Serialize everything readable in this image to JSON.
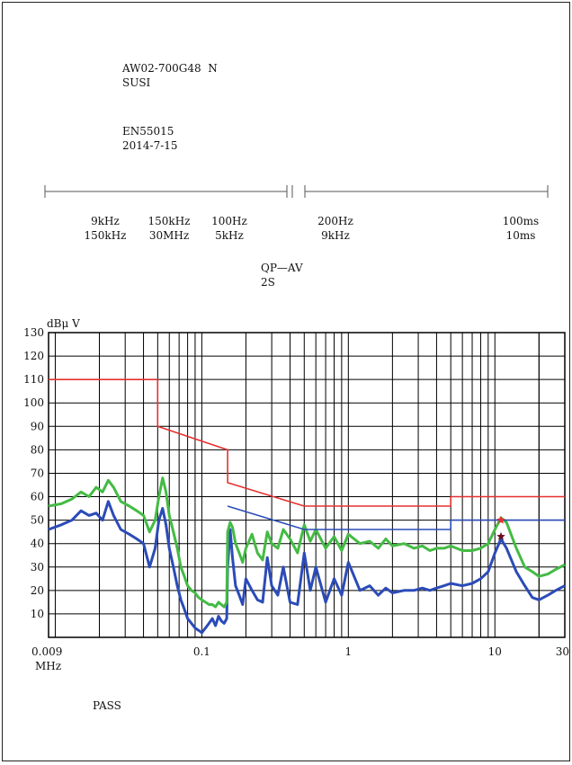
{
  "header": {
    "model": "AW02-700G48  N",
    "name": "SUSI",
    "standard": "EN55015",
    "date": "2014-7-15"
  },
  "bands": {
    "band_a_start": "9kHz",
    "band_a_end": "150kHz",
    "band_b_start": "150kHz",
    "band_b_end": "30MHz",
    "rbw_a": "100Hz",
    "rbw_b": "5kHz",
    "step_a": "200Hz",
    "step_b": "9kHz",
    "time_a": "100ms",
    "time_b": "10ms",
    "detector": "QP—AV",
    "sweep": "2S"
  },
  "result": "PASS",
  "colors": {
    "limit_qp": "#e53030",
    "limit_av": "#2b4bb8",
    "trace_qp": "#44bb44",
    "trace_av": "#2b4bb8",
    "marker_qp": "#e53030",
    "marker_av": "#6a1020"
  },
  "chart_data": {
    "type": "line",
    "x_scale": "log",
    "xlim": [
      0.009,
      30
    ],
    "ylim": [
      0,
      130
    ],
    "ylabel": "dBμ V",
    "xlabel_unit": "MHz",
    "grid": true,
    "y_ticks": [
      "10",
      "20",
      "30",
      "40",
      "50",
      "60",
      "70",
      "80",
      "90",
      "100",
      "110",
      "120",
      "130"
    ],
    "x_tick_labels": [
      {
        "x": 0.009,
        "label": "0.009"
      },
      {
        "x": 0.1,
        "label": "0.1"
      },
      {
        "x": 1,
        "label": "1"
      },
      {
        "x": 10,
        "label": "10"
      },
      {
        "x": 30,
        "label": "30"
      }
    ],
    "series": [
      {
        "key": "limit_qp",
        "style": "limit",
        "x": [
          0.009,
          0.05,
          0.05,
          0.15,
          0.15,
          0.5,
          5,
          5,
          30
        ],
        "y": [
          110,
          110,
          90,
          80,
          66,
          56,
          56,
          60,
          60
        ]
      },
      {
        "key": "limit_av",
        "style": "limit",
        "x": [
          0.15,
          0.5,
          5,
          5,
          30
        ],
        "y": [
          56,
          46,
          46,
          50,
          50
        ]
      },
      {
        "key": "trace_qp",
        "style": "trace",
        "x": [
          0.009,
          0.011,
          0.013,
          0.015,
          0.017,
          0.019,
          0.021,
          0.023,
          0.025,
          0.028,
          0.032,
          0.036,
          0.04,
          0.044,
          0.048,
          0.051,
          0.054,
          0.057,
          0.06,
          0.064,
          0.068,
          0.072,
          0.076,
          0.08,
          0.085,
          0.09,
          0.095,
          0.1,
          0.106,
          0.112,
          0.118,
          0.124,
          0.13,
          0.136,
          0.142,
          0.148,
          0.15,
          0.156,
          0.162,
          0.17,
          0.18,
          0.19,
          0.2,
          0.22,
          0.24,
          0.26,
          0.28,
          0.3,
          0.33,
          0.36,
          0.4,
          0.45,
          0.5,
          0.55,
          0.6,
          0.7,
          0.8,
          0.9,
          1,
          1.2,
          1.4,
          1.6,
          1.8,
          2,
          2.4,
          2.8,
          3.2,
          3.6,
          4,
          4.5,
          5,
          6,
          7,
          8,
          9,
          10,
          11,
          12,
          14,
          16,
          18,
          20,
          23,
          26,
          30
        ],
        "y": [
          56,
          57,
          59,
          62,
          60,
          64,
          62,
          67,
          64,
          58,
          56,
          54,
          52,
          45,
          50,
          60,
          68,
          62,
          52,
          45,
          38,
          30,
          26,
          22,
          20,
          19,
          17,
          16,
          15,
          14,
          14,
          13,
          15,
          14,
          13,
          15,
          45,
          49,
          47,
          40,
          36,
          32,
          38,
          44,
          36,
          33,
          45,
          40,
          38,
          46,
          42,
          36,
          48,
          41,
          46,
          38,
          43,
          37,
          44,
          40,
          41,
          38,
          42,
          39,
          40,
          38,
          39,
          37,
          38,
          38,
          39,
          37,
          37,
          38,
          40,
          46,
          51,
          49,
          38,
          30,
          28,
          26,
          27,
          29,
          31
        ]
      },
      {
        "key": "trace_av",
        "style": "trace",
        "x": [
          0.009,
          0.011,
          0.013,
          0.015,
          0.017,
          0.019,
          0.021,
          0.023,
          0.025,
          0.028,
          0.032,
          0.036,
          0.04,
          0.044,
          0.048,
          0.051,
          0.054,
          0.057,
          0.06,
          0.064,
          0.068,
          0.072,
          0.076,
          0.08,
          0.085,
          0.09,
          0.095,
          0.1,
          0.106,
          0.112,
          0.118,
          0.124,
          0.13,
          0.136,
          0.142,
          0.148,
          0.15,
          0.156,
          0.162,
          0.17,
          0.18,
          0.19,
          0.2,
          0.22,
          0.24,
          0.26,
          0.28,
          0.3,
          0.33,
          0.36,
          0.4,
          0.45,
          0.5,
          0.55,
          0.6,
          0.7,
          0.8,
          0.9,
          1,
          1.2,
          1.4,
          1.6,
          1.8,
          2,
          2.4,
          2.8,
          3.2,
          3.6,
          4,
          4.5,
          5,
          6,
          7,
          8,
          9,
          10,
          11,
          12,
          14,
          16,
          18,
          20,
          23,
          26,
          30
        ],
        "y": [
          46,
          48,
          50,
          54,
          52,
          53,
          50,
          58,
          52,
          46,
          44,
          42,
          40,
          30,
          38,
          50,
          55,
          48,
          38,
          30,
          22,
          16,
          12,
          8,
          6,
          4,
          3,
          2,
          4,
          6,
          8,
          5,
          9,
          7,
          6,
          8,
          30,
          46,
          34,
          22,
          18,
          14,
          25,
          20,
          16,
          15,
          34,
          22,
          18,
          30,
          15,
          14,
          36,
          20,
          30,
          15,
          25,
          18,
          32,
          20,
          22,
          18,
          21,
          19,
          20,
          20,
          21,
          20,
          21,
          22,
          23,
          22,
          23,
          25,
          28,
          36,
          42,
          38,
          28,
          22,
          17,
          16,
          18,
          20,
          22
        ]
      }
    ],
    "markers": [
      {
        "key": "marker_qp",
        "x": 11,
        "y": 50
      },
      {
        "key": "marker_av",
        "x": 11,
        "y": 43
      }
    ]
  }
}
